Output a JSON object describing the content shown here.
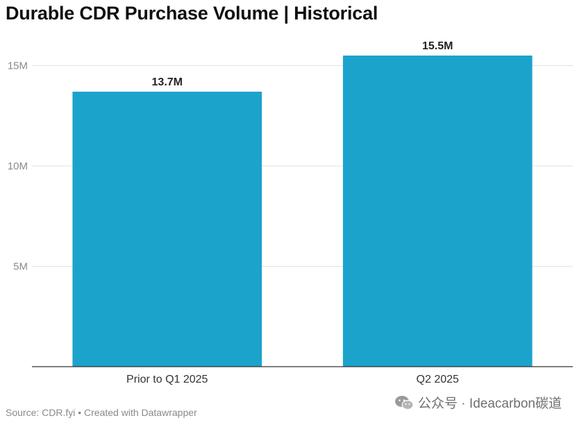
{
  "chart_data": {
    "type": "bar",
    "title": "Durable CDR Purchase Volume | Historical",
    "categories": [
      "Prior to Q1 2025",
      "Q2 2025"
    ],
    "values": [
      13.7,
      15.5
    ],
    "value_labels": [
      "13.7M",
      "15.5M"
    ],
    "ytick_values": [
      5,
      10,
      15
    ],
    "ytick_labels": [
      "5M",
      "10M",
      "15M"
    ],
    "ylim": [
      0,
      15.5
    ],
    "xlabel": "",
    "ylabel": "",
    "grid": true,
    "bar_color": "#1ba3cc"
  },
  "footer": {
    "source": "Source: CDR.fyi • Created with Datawrapper",
    "watermark": "公众号 · Ideacarbon碳道",
    "watermark_icon": "wechat-icon"
  }
}
